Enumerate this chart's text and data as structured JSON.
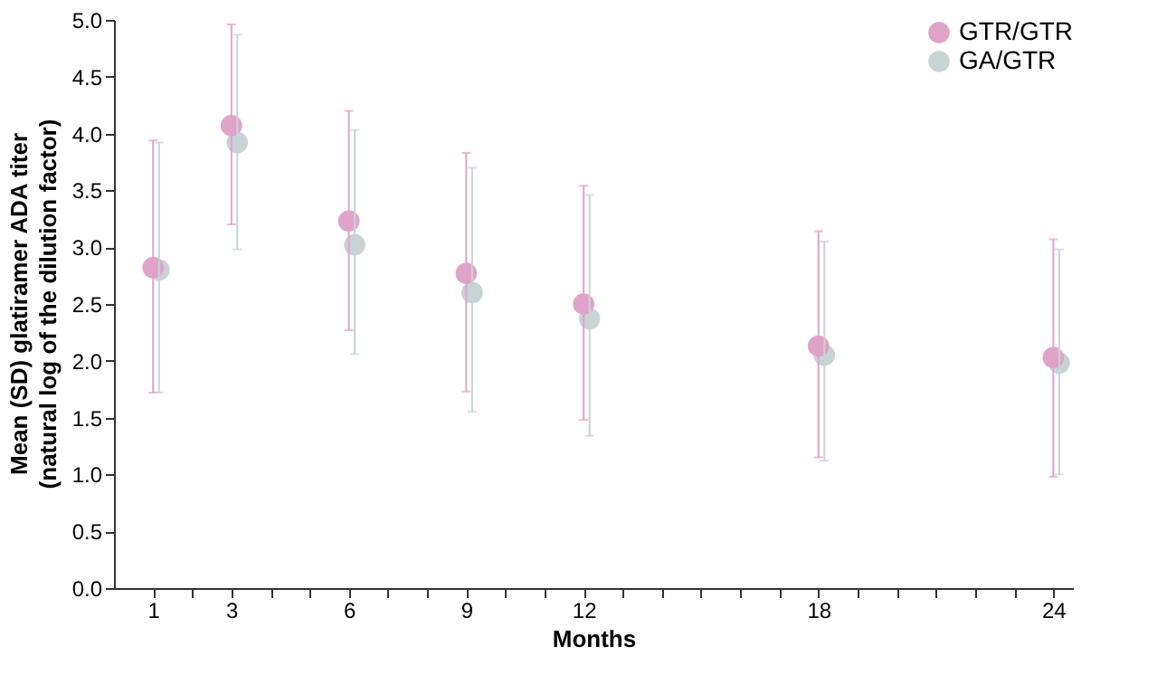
{
  "chart_data": {
    "type": "scatter",
    "xlabel": "Months",
    "ylabel": "Mean (SD) glatiramer ADA titer\n(natural log of the dilution factor)",
    "x": [
      1,
      3,
      6,
      9,
      12,
      18,
      24
    ],
    "series": [
      {
        "name": "GTR/GTR",
        "color": "#e0a3c8",
        "values": [
          2.82,
          4.07,
          3.23,
          2.77,
          2.5,
          2.13,
          2.03
        ],
        "errors": [
          [
            1.72,
            3.94
          ],
          [
            3.2,
            4.96
          ],
          [
            2.27,
            4.2
          ],
          [
            1.73,
            3.83
          ],
          [
            1.48,
            3.54
          ],
          [
            1.15,
            3.14
          ],
          [
            0.98,
            3.07
          ]
        ]
      },
      {
        "name": "GA/GTR",
        "color": "#c8d3d6",
        "x": [
          1.15,
          3.15,
          6.15,
          9.15,
          12.15,
          18.15,
          24.15
        ],
        "values": [
          2.8,
          3.92,
          3.02,
          2.6,
          2.37,
          2.05,
          1.98
        ],
        "errors": [
          [
            1.72,
            3.92
          ],
          [
            2.98,
            4.87
          ],
          [
            2.06,
            4.03
          ],
          [
            1.55,
            3.7
          ],
          [
            1.34,
            3.46
          ],
          [
            1.12,
            3.05
          ],
          [
            1.0,
            2.98
          ]
        ]
      }
    ],
    "xlim": [
      0,
      24.5
    ],
    "xticks": [
      1,
      {
        "value": 2,
        "label": null
      },
      3,
      {
        "value": 4,
        "label": null
      },
      {
        "value": 5,
        "label": null
      },
      6,
      {
        "value": 7,
        "label": null
      },
      {
        "value": 8,
        "label": null
      },
      9,
      {
        "value": 10,
        "label": null
      },
      {
        "value": 11,
        "label": null
      },
      12,
      {
        "value": 13,
        "label": null
      },
      {
        "value": 14,
        "label": null
      },
      {
        "value": 15,
        "label": null
      },
      {
        "value": 16,
        "label": null
      },
      {
        "value": 17,
        "label": null
      },
      18,
      {
        "value": 19,
        "label": null
      },
      {
        "value": 20,
        "label": null
      },
      {
        "value": 21,
        "label": null
      },
      {
        "value": 22,
        "label": null
      },
      {
        "value": 23,
        "label": null
      },
      24
    ],
    "ylim": [
      0,
      5
    ],
    "yticks": [
      {
        "value": 0,
        "label": "0.0"
      },
      {
        "value": 0.5,
        "label": "0.5"
      },
      {
        "value": 1,
        "label": "1.0"
      },
      {
        "value": 1.5,
        "label": "1.5"
      },
      {
        "value": 2,
        "label": "2.0"
      },
      {
        "value": 2.5,
        "label": "2.5"
      },
      {
        "value": 3,
        "label": "3.0"
      },
      {
        "value": 3.5,
        "label": "3.5"
      },
      {
        "value": 4,
        "label": "4.0"
      },
      {
        "value": 4.5,
        "label": "4.5"
      },
      {
        "value": 5,
        "label": "5.0"
      }
    ],
    "grid": false,
    "legend": "top right",
    "marker": "circle"
  }
}
